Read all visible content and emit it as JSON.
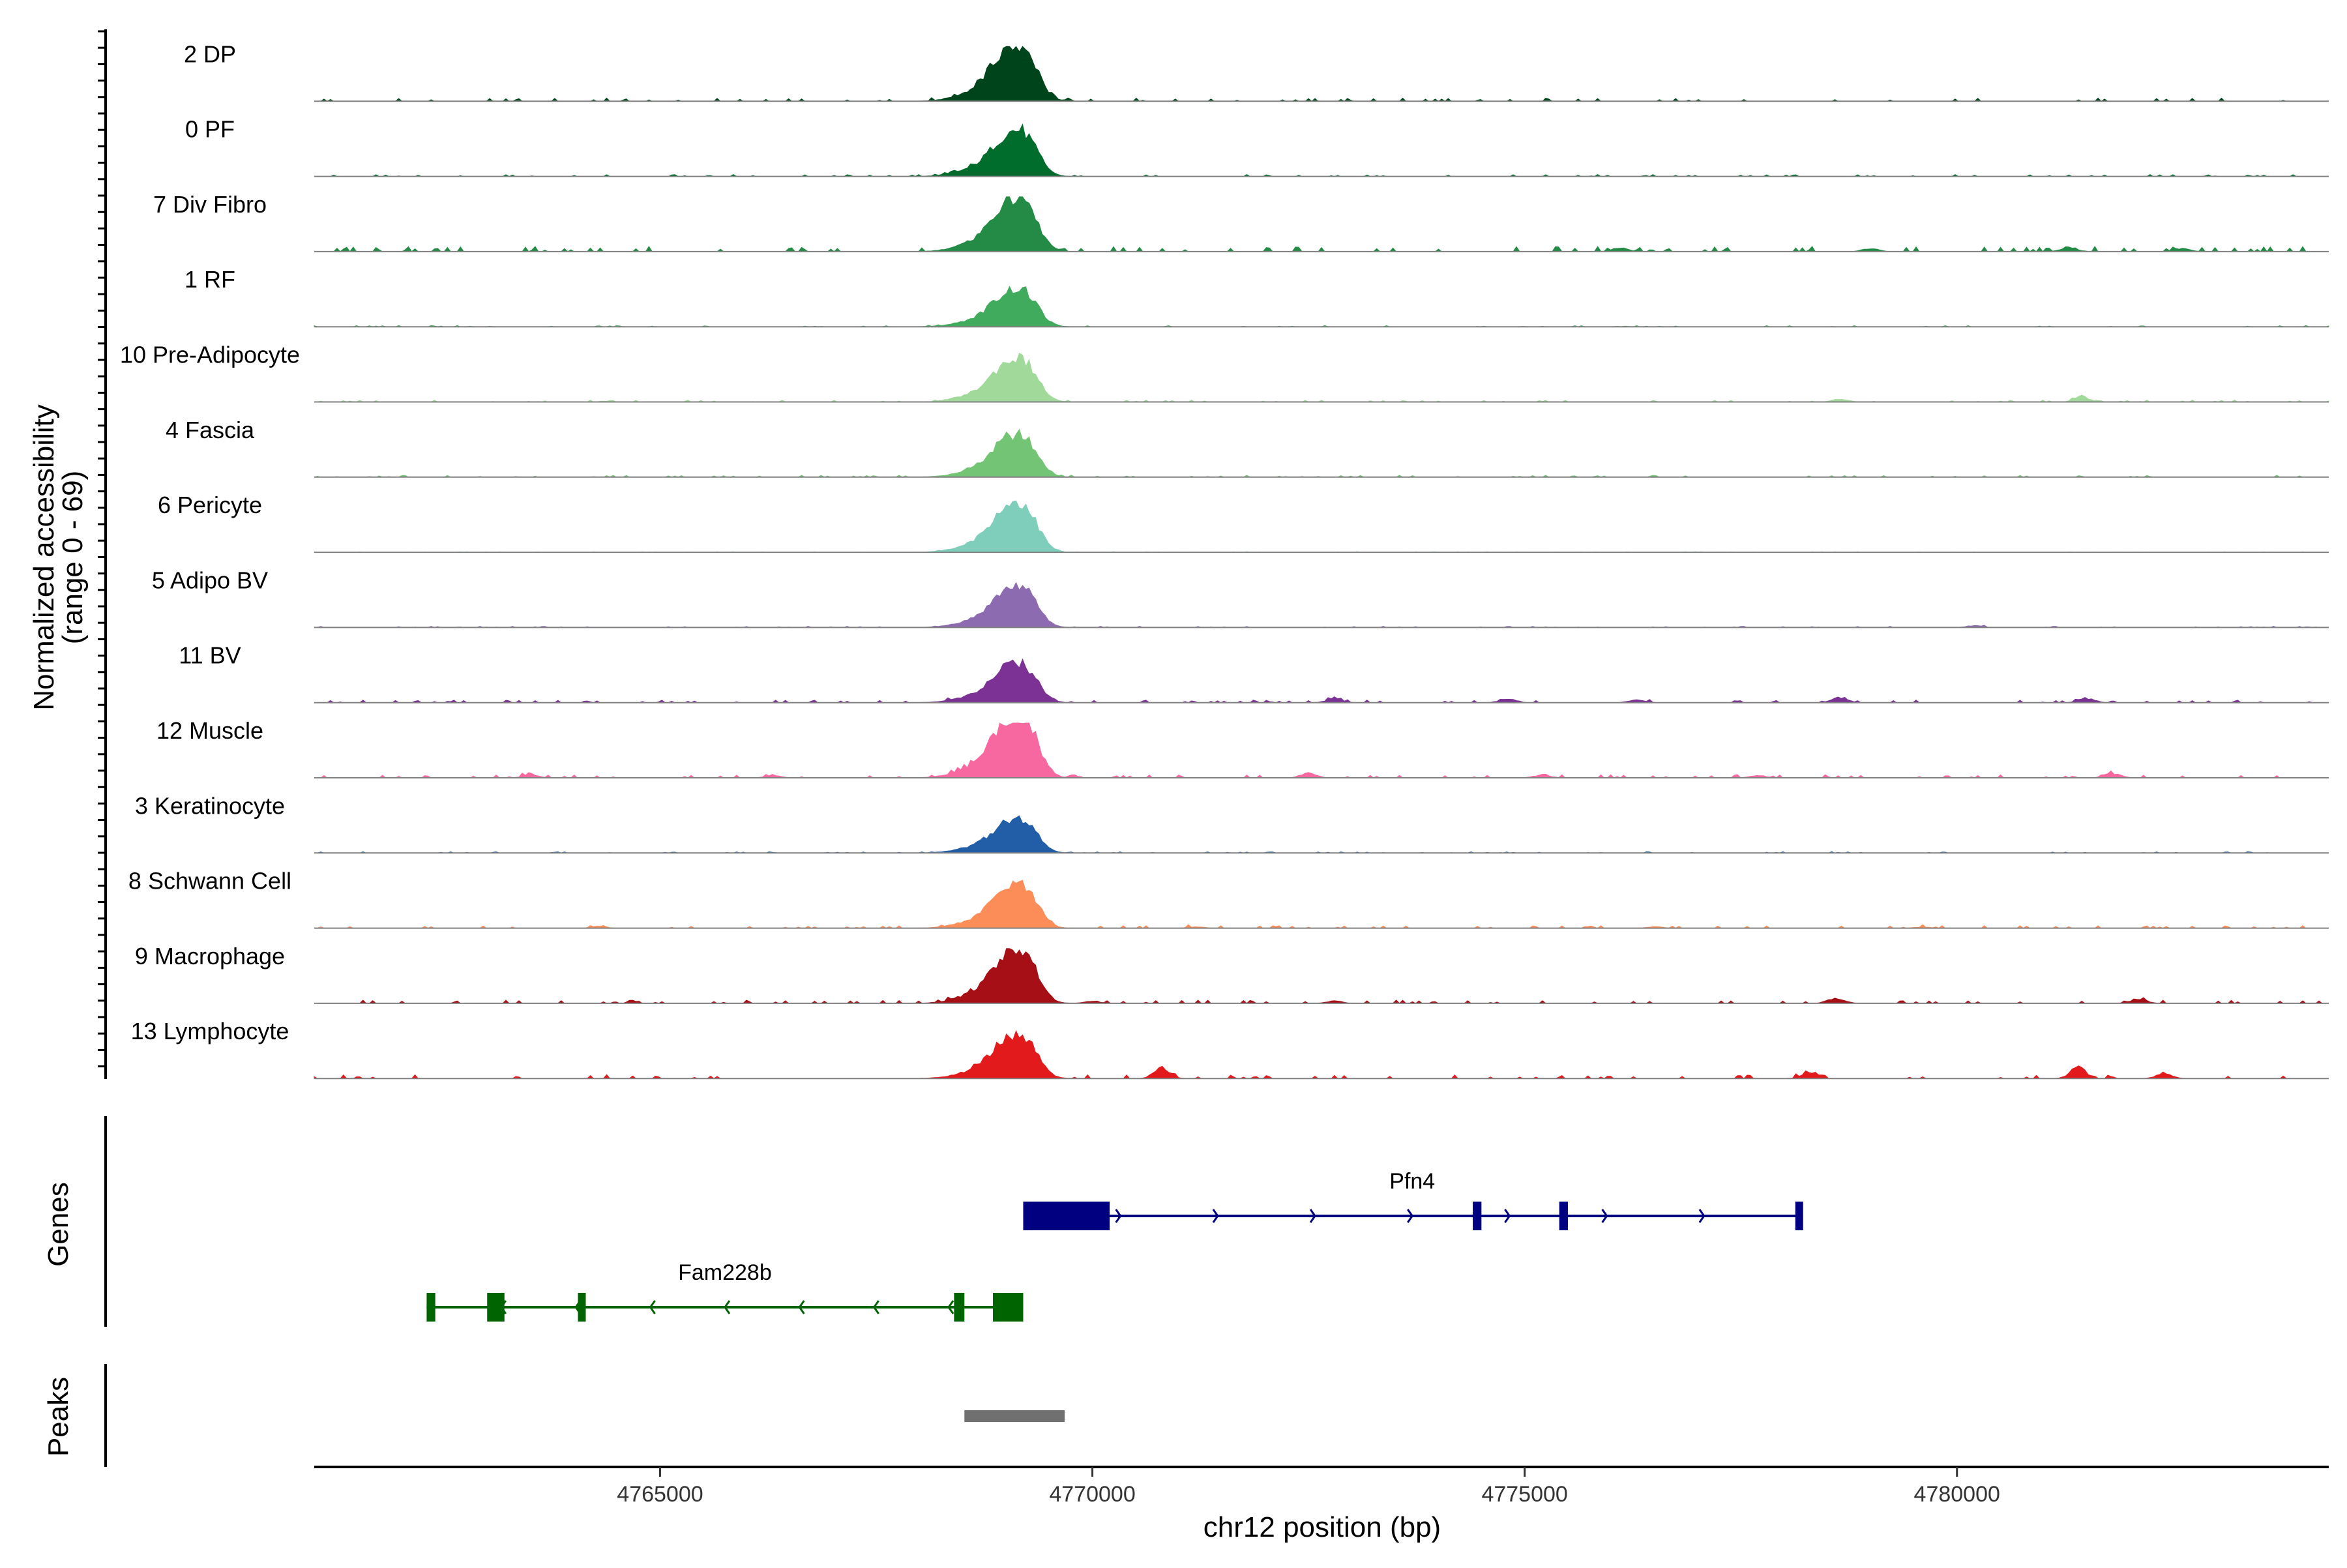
{
  "chart_data": {
    "type": "area",
    "title": "",
    "ylabel_line1": "Normalized accessibility",
    "ylabel_line2": "(range 0 - 69)",
    "xlabel": "chr12 position (bp)",
    "xlim": [
      4761000,
      4784300
    ],
    "ylim": [
      0,
      69
    ],
    "x_ticks": [
      4765000,
      4770000,
      4775000,
      4780000
    ],
    "x_tick_labels": [
      "4765000",
      "4770000",
      "4775000",
      "4780000"
    ],
    "tracks": [
      {
        "name": "2 DP",
        "color": "#00441b",
        "peak": 1.0,
        "bg": 0.05,
        "minor": []
      },
      {
        "name": "0 PF",
        "color": "#006d2c",
        "peak": 0.82,
        "bg": 0.03,
        "minor": []
      },
      {
        "name": "7 Div Fibro",
        "color": "#238b45",
        "peak": 0.95,
        "bg": 0.08,
        "minor": [
          [
            4776100,
            0.1
          ],
          [
            4779000,
            0.08
          ],
          [
            4781300,
            0.12
          ],
          [
            4782600,
            0.09
          ]
        ]
      },
      {
        "name": "1 RF",
        "color": "#41ab5d",
        "peak": 0.68,
        "bg": 0.02,
        "minor": []
      },
      {
        "name": "10 Pre-Adipocyte",
        "color": "#a1d99b",
        "peak": 0.78,
        "bg": 0.03,
        "minor": [
          [
            4778650,
            0.08
          ],
          [
            4781450,
            0.14
          ]
        ]
      },
      {
        "name": "4 Fascia",
        "color": "#74c476",
        "peak": 0.75,
        "bg": 0.03,
        "minor": []
      },
      {
        "name": "6 Pericyte",
        "color": "#7fcdbb",
        "peak": 0.9,
        "bg": 0.01,
        "minor": []
      },
      {
        "name": "5 Adipo BV",
        "color": "#8c6bb1",
        "peak": 0.74,
        "bg": 0.02,
        "minor": [
          [
            4780200,
            0.05
          ]
        ]
      },
      {
        "name": "11 BV",
        "color": "#7b3294",
        "peak": 0.7,
        "bg": 0.04,
        "minor": [
          [
            4772800,
            0.12
          ],
          [
            4774800,
            0.1
          ],
          [
            4776300,
            0.08
          ],
          [
            4778650,
            0.14
          ],
          [
            4781500,
            0.12
          ]
        ]
      },
      {
        "name": "12 Muscle",
        "color": "#f768a1",
        "peak": 1.15,
        "bg": 0.05,
        "minor": [
          [
            4763500,
            0.08
          ],
          [
            4766300,
            0.06
          ],
          [
            4772500,
            0.12
          ],
          [
            4775200,
            0.08
          ],
          [
            4777700,
            0.06
          ],
          [
            4781800,
            0.12
          ]
        ]
      },
      {
        "name": "3 Keratinocyte",
        "color": "#225ea8",
        "peak": 0.6,
        "bg": 0.02,
        "minor": []
      },
      {
        "name": "8 Schwann Cell",
        "color": "#fc8d59",
        "peak": 0.78,
        "bg": 0.04,
        "minor": [
          [
            4764300,
            0.05
          ],
          [
            4771200,
            0.04
          ],
          [
            4776500,
            0.04
          ],
          [
            4779600,
            0.03
          ]
        ]
      },
      {
        "name": "9 Macrophage",
        "color": "#a50f15",
        "peak": 0.98,
        "bg": 0.05,
        "minor": [
          [
            4770000,
            0.06
          ],
          [
            4772800,
            0.06
          ],
          [
            4778600,
            0.16
          ],
          [
            4782100,
            0.12
          ]
        ]
      },
      {
        "name": "13 Lymphocyte",
        "color": "#e31a1c",
        "peak": 0.78,
        "bg": 0.06,
        "minor": [
          [
            4770800,
            0.3
          ],
          [
            4778300,
            0.2
          ],
          [
            4781400,
            0.28
          ],
          [
            4782400,
            0.15
          ]
        ]
      }
    ],
    "genes_label": "Genes",
    "genes": [
      {
        "name": "Pfn4",
        "strand": "+",
        "color": "#000080",
        "start": 4769200,
        "end": 4778200,
        "exons": [
          [
            4769200,
            4770200
          ],
          [
            4774400,
            4774500
          ],
          [
            4775400,
            4775500
          ],
          [
            4778130,
            4778200
          ]
        ]
      },
      {
        "name": "Fam228b",
        "strand": "-",
        "color": "#006400",
        "start": 4762300,
        "end": 4769200,
        "exons": [
          [
            4762300,
            4762400
          ],
          [
            4763000,
            4763200
          ],
          [
            4764050,
            4764120
          ],
          [
            4768400,
            4768520
          ],
          [
            4768850,
            4769200
          ]
        ]
      }
    ],
    "peaks_label": "Peaks",
    "peaks": [
      {
        "start": 4768520,
        "end": 4769680,
        "color": "#707070"
      }
    ]
  }
}
